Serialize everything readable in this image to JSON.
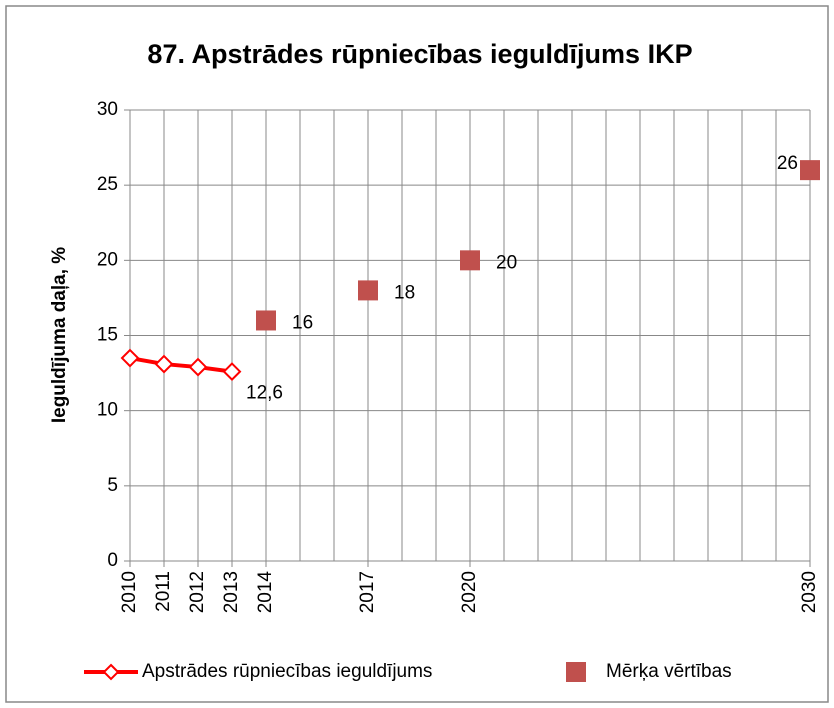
{
  "chart_data": {
    "type": "line+scatter",
    "title": "87. Apstrādes rūpniecības ieguldījums IKP",
    "y_label": "Ieguldījuma daļa, %",
    "series": [
      {
        "name": "Apstrādes rūpniecības ieguldījums",
        "kind": "line",
        "color": "#ff0000",
        "x": [
          2010,
          2011,
          2012,
          2013
        ],
        "values": [
          13.5,
          13.1,
          12.9,
          12.6
        ],
        "value_labels": [
          null,
          null,
          null,
          "12,6"
        ]
      },
      {
        "name": "Mērķa vērtības",
        "kind": "scatter",
        "color": "#c0504d",
        "x": [
          2014,
          2017,
          2020,
          2030
        ],
        "values": [
          16,
          18,
          20,
          26
        ]
      }
    ],
    "xlim": [
      2010,
      2030
    ],
    "xticks": [
      2010,
      2011,
      2012,
      2013,
      2014,
      2017,
      2020,
      2030
    ],
    "minor_xticks": [
      2015,
      2016,
      2018,
      2019,
      2021,
      2022,
      2023,
      2024,
      2025,
      2026,
      2027,
      2028,
      2029
    ],
    "ylim": [
      0,
      30
    ],
    "yticks": [
      0,
      5,
      10,
      15,
      20,
      25,
      30
    ],
    "grid": true,
    "legend": "bottom"
  }
}
